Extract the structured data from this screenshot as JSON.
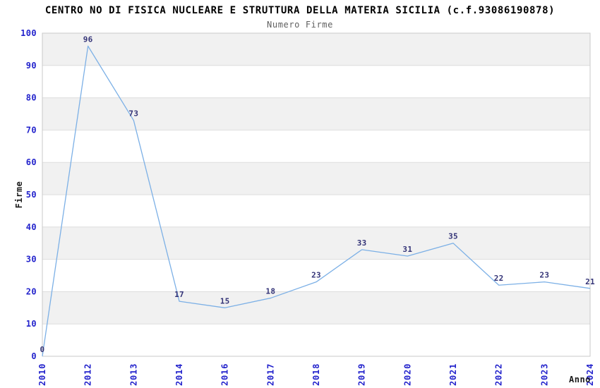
{
  "chart_data": {
    "type": "line",
    "title": "CENTRO NO DI FISICA NUCLEARE E STRUTTURA DELLA MATERIA SICILIA (c.f.93086190878)",
    "subtitle": "Numero Firme",
    "xlabel": "Anno",
    "ylabel": "Firme",
    "categories": [
      "2010",
      "2012",
      "2013",
      "2014",
      "2016",
      "2017",
      "2018",
      "2019",
      "2020",
      "2021",
      "2022",
      "2023",
      "2024"
    ],
    "values": [
      0,
      96,
      73,
      17,
      15,
      18,
      23,
      33,
      31,
      35,
      22,
      23,
      21
    ],
    "data_labels": [
      "0",
      "96",
      "73",
      "17",
      "15",
      "18",
      "23",
      "33",
      "31",
      "35",
      "22",
      "23",
      "21"
    ],
    "ylim": [
      0,
      100
    ],
    "ytick_step": 10,
    "yticks": [
      0,
      10,
      20,
      30,
      40,
      50,
      60,
      70,
      80,
      90,
      100
    ],
    "legend": "none",
    "grid": "horizontal gridlines with alternating shaded bands",
    "markers": "none",
    "colors": {
      "line": "#7cb0e6",
      "data_label": "#333377",
      "tick_label": "#2323cc",
      "band": "#f1f1f1",
      "grid": "#dedede",
      "border": "#c9c9c9",
      "title": "#000000",
      "subtitle": "#606060",
      "axis_title": "#1a1a1a",
      "background": "#ffffff"
    }
  }
}
